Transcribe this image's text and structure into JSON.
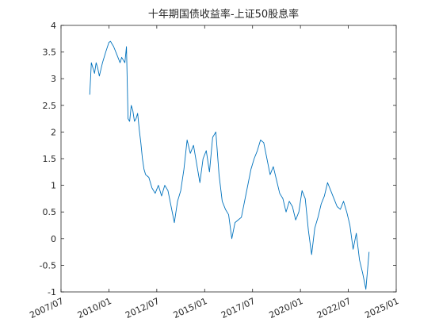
{
  "chart_data": {
    "type": "line",
    "title": "十年期国债收益率-上证50股息率",
    "xlabel": "",
    "ylabel": "",
    "xlim": [
      "2007-07",
      "2025-01"
    ],
    "ylim": [
      -1,
      4
    ],
    "x_ticks": [
      "2007/07",
      "2010/01",
      "2012/07",
      "2015/01",
      "2017/07",
      "2020/01",
      "2022/07",
      "2025/01"
    ],
    "y_ticks": [
      "-1",
      "-0.5",
      "0",
      "0.5",
      "1",
      "1.5",
      "2",
      "2.5",
      "3",
      "3.5",
      "4"
    ],
    "grid": false,
    "colors": {
      "series": "#0072bd",
      "axis": "#262626"
    },
    "series": [
      {
        "x": [
          "2009-01",
          "2009-02",
          "2009-03",
          "2009-04",
          "2009-05",
          "2009-06",
          "2009-07",
          "2009-09",
          "2009-11",
          "2010-01",
          "2010-02",
          "2010-04",
          "2010-06",
          "2010-08",
          "2010-09",
          "2010-10",
          "2010-11",
          "2010-12",
          "2011-01",
          "2011-02",
          "2011-03",
          "2011-04",
          "2011-05",
          "2011-06",
          "2011-07",
          "2011-08",
          "2011-09",
          "2011-10",
          "2011-11",
          "2011-12",
          "2012-02",
          "2012-04",
          "2012-06",
          "2012-08",
          "2012-10",
          "2012-12",
          "2013-02",
          "2013-04",
          "2013-06",
          "2013-08",
          "2013-10",
          "2013-12",
          "2014-02",
          "2014-04",
          "2014-06",
          "2014-08",
          "2014-10",
          "2014-12",
          "2015-02",
          "2015-04",
          "2015-06",
          "2015-08",
          "2015-10",
          "2015-12",
          "2016-02",
          "2016-04",
          "2016-06",
          "2016-08",
          "2016-10",
          "2016-12",
          "2017-02",
          "2017-04",
          "2017-06",
          "2017-08",
          "2017-10",
          "2017-12",
          "2018-02",
          "2018-04",
          "2018-06",
          "2018-08",
          "2018-10",
          "2018-12",
          "2019-02",
          "2019-04",
          "2019-06",
          "2019-08",
          "2019-10",
          "2019-12",
          "2020-02",
          "2020-04",
          "2020-06",
          "2020-08",
          "2020-10",
          "2020-12",
          "2021-02",
          "2021-04",
          "2021-06",
          "2021-08",
          "2021-10",
          "2021-12",
          "2022-02",
          "2022-04",
          "2022-06",
          "2022-08",
          "2022-10",
          "2022-12",
          "2023-02",
          "2023-04",
          "2023-06",
          "2023-08"
        ],
        "y": [
          2.7,
          3.3,
          3.2,
          3.1,
          3.3,
          3.2,
          3.05,
          3.3,
          3.5,
          3.68,
          3.7,
          3.6,
          3.45,
          3.3,
          3.4,
          3.35,
          3.3,
          3.6,
          2.25,
          2.2,
          2.5,
          2.4,
          2.2,
          2.25,
          2.35,
          2.05,
          1.8,
          1.5,
          1.3,
          1.2,
          1.15,
          0.95,
          0.85,
          1.0,
          0.8,
          1.0,
          0.9,
          0.6,
          0.3,
          0.7,
          0.9,
          1.3,
          1.85,
          1.6,
          1.75,
          1.4,
          1.05,
          1.5,
          1.65,
          1.25,
          1.9,
          2.0,
          1.2,
          0.7,
          0.55,
          0.45,
          0.0,
          0.3,
          0.35,
          0.4,
          0.7,
          1.0,
          1.3,
          1.5,
          1.65,
          1.85,
          1.8,
          1.5,
          1.2,
          1.35,
          1.1,
          0.85,
          0.75,
          0.5,
          0.7,
          0.6,
          0.35,
          0.5,
          0.9,
          0.75,
          0.15,
          -0.3,
          0.2,
          0.4,
          0.65,
          0.8,
          1.05,
          0.9,
          0.75,
          0.6,
          0.55,
          0.7,
          0.5,
          0.25,
          -0.2,
          0.1,
          -0.4,
          -0.65,
          -0.95,
          -0.25
        ]
      }
    ]
  }
}
